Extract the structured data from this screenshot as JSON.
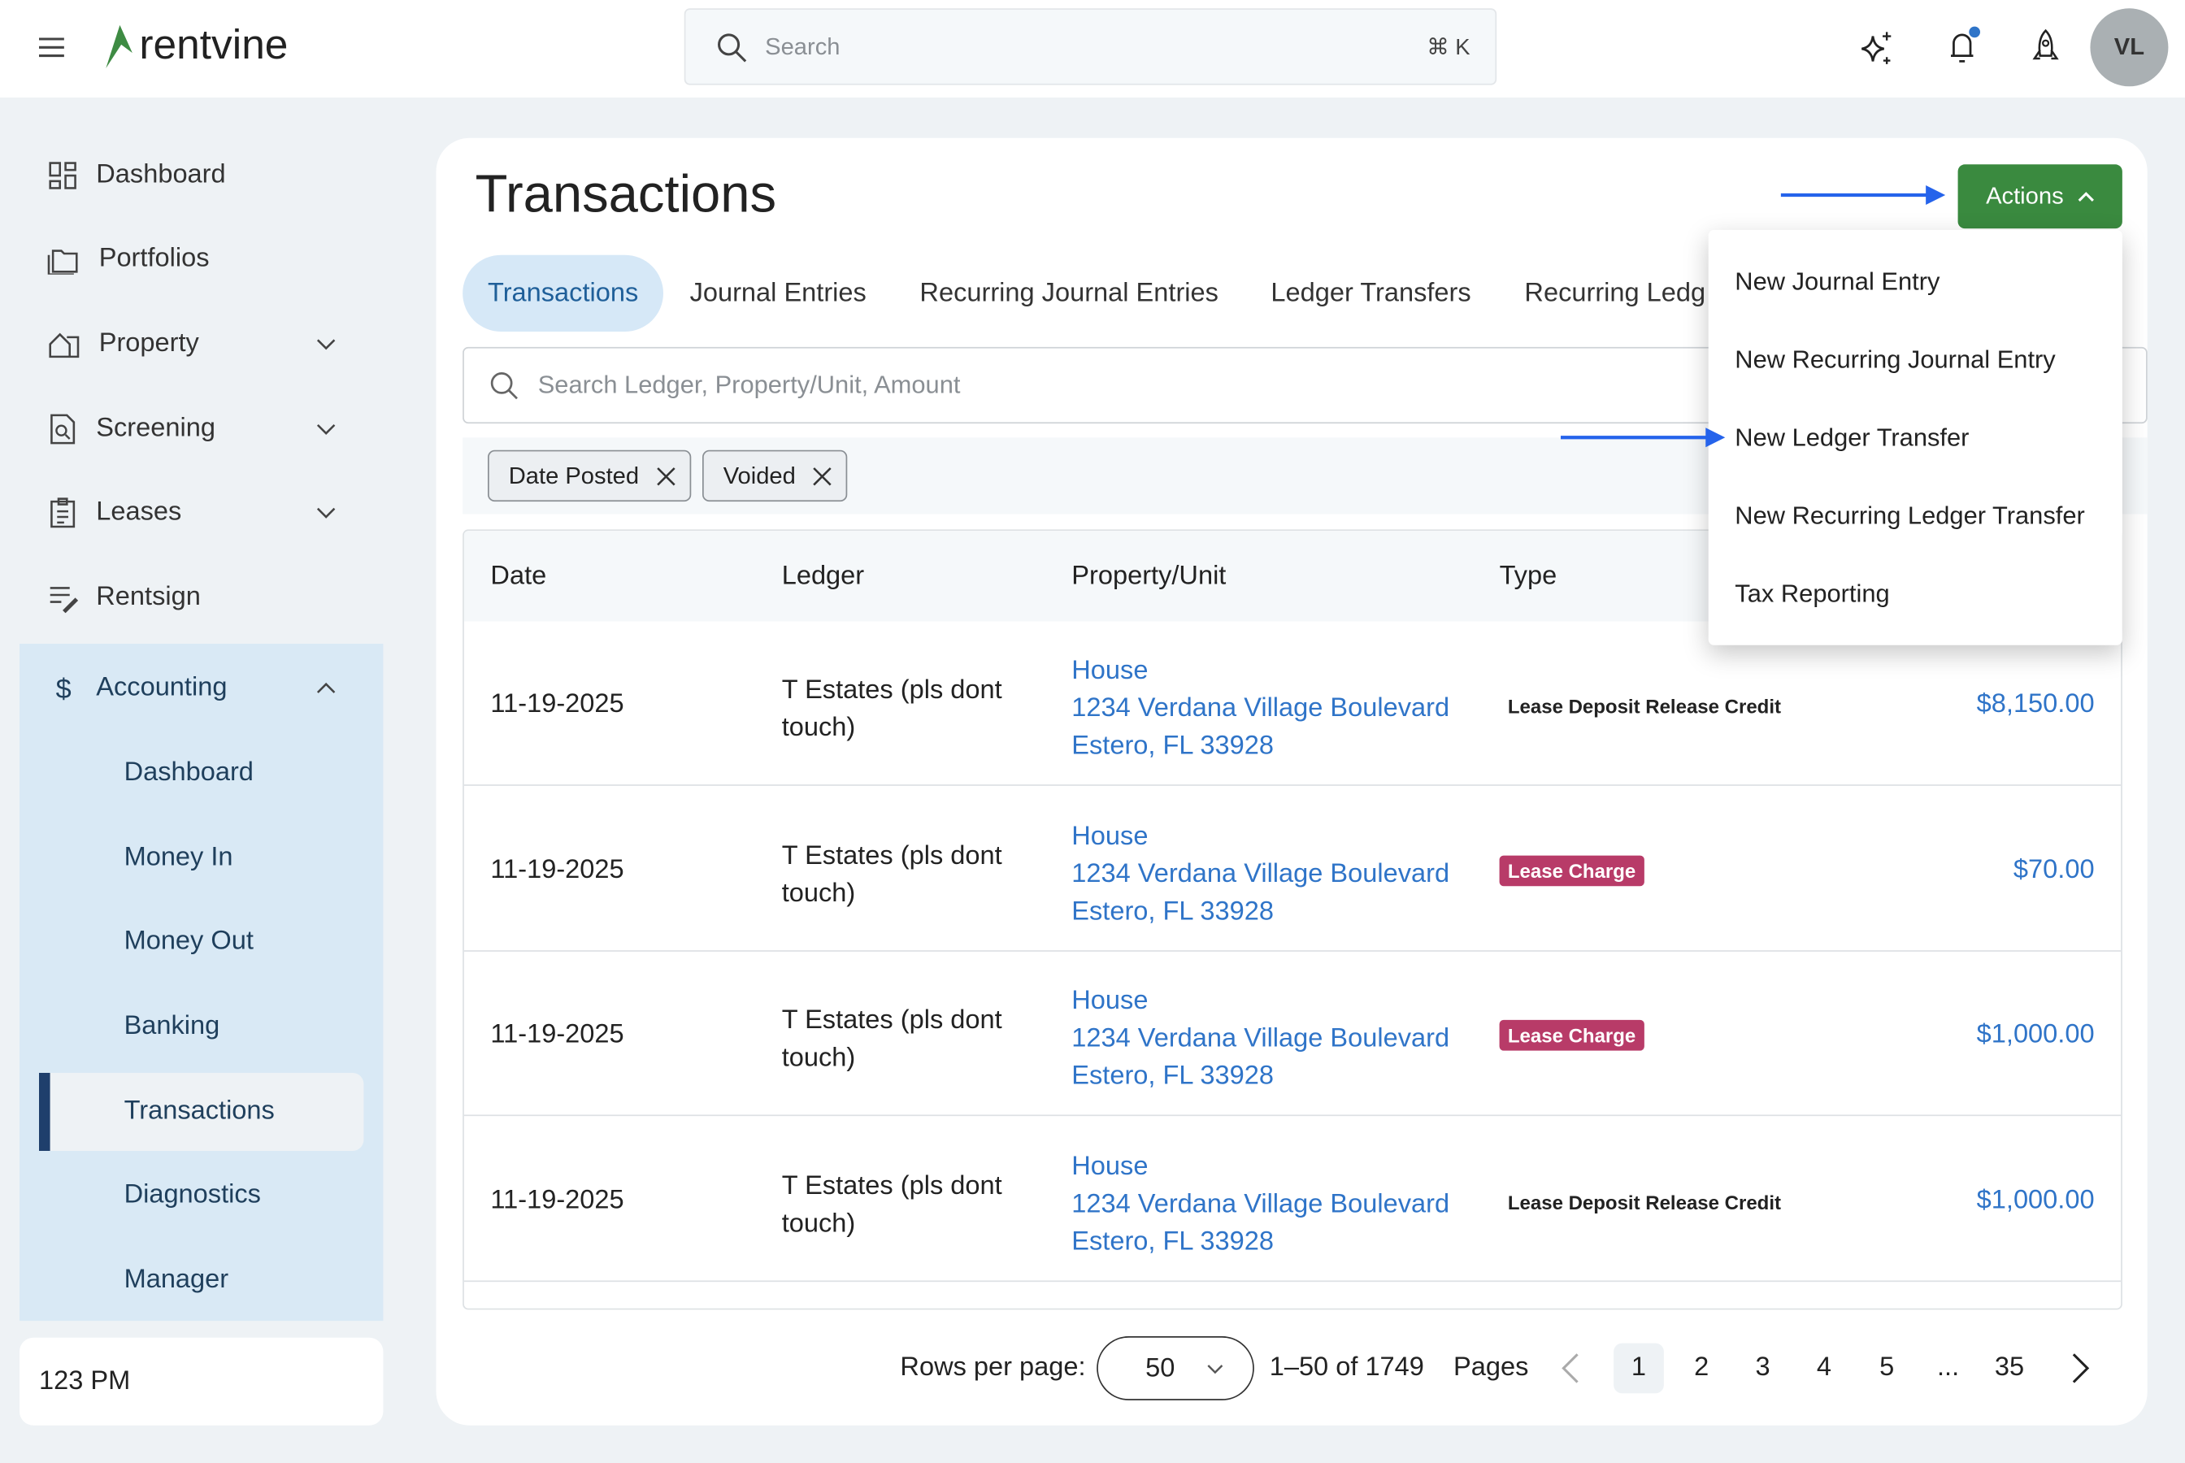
{
  "header": {
    "logo": "rentvine",
    "search_placeholder": "Search",
    "shortcut": "⌘ K",
    "avatar": "VL",
    "accent": "#3a8a3f",
    "notification_dot": "#2f74c8"
  },
  "sidebar": {
    "items": [
      {
        "label": "Dashboard",
        "icon": "grid-icon"
      },
      {
        "label": "Portfolios",
        "icon": "folder-icon"
      },
      {
        "label": "Property",
        "icon": "house-icon"
      },
      {
        "label": "Screening",
        "icon": "document-search-icon"
      },
      {
        "label": "Leases",
        "icon": "clipboard-icon"
      },
      {
        "label": "Rentsign",
        "icon": "sign-icon"
      }
    ],
    "accounting": {
      "label": "Accounting",
      "items": [
        "Dashboard",
        "Money In",
        "Money Out",
        "Banking",
        "Transactions",
        "Diagnostics",
        "Manager"
      ],
      "selected": "Transactions"
    },
    "footer": "123 PM"
  },
  "main": {
    "title": "Transactions",
    "actions_label": "Actions",
    "tabs": [
      "Transactions",
      "Journal Entries",
      "Recurring Journal Entries",
      "Ledger Transfers",
      "Recurring Ledger Transfers"
    ],
    "search_placeholder": "Search Ledger, Property/Unit, Amount",
    "filters": [
      "Date Posted",
      "Voided"
    ],
    "columns": [
      "Date",
      "Ledger",
      "Property/Unit",
      "Type"
    ],
    "rows": [
      {
        "date": "11-19-2025",
        "ledger": "T Estates (pls dont touch)",
        "unit": "House",
        "addr1": "1234 Verdana Village Boulevard",
        "addr2": "Estero, FL 33928",
        "type": "Lease Deposit Release Credit",
        "badge": false,
        "amount": "$8,150.00"
      },
      {
        "date": "11-19-2025",
        "ledger": "T Estates (pls dont touch)",
        "unit": "House",
        "addr1": "1234 Verdana Village Boulevard",
        "addr2": "Estero, FL 33928",
        "type": "Lease Charge",
        "badge": true,
        "amount": "$70.00"
      },
      {
        "date": "11-19-2025",
        "ledger": "T Estates (pls dont touch)",
        "unit": "House",
        "addr1": "1234 Verdana Village Boulevard",
        "addr2": "Estero, FL 33928",
        "type": "Lease Charge",
        "badge": true,
        "amount": "$1,000.00"
      },
      {
        "date": "11-19-2025",
        "ledger": "T Estates (pls dont touch)",
        "unit": "House",
        "addr1": "1234 Verdana Village Boulevard",
        "addr2": "Estero, FL 33928",
        "type": "Lease Deposit Release Credit",
        "badge": false,
        "amount": "$1,000.00"
      }
    ],
    "pagination": {
      "rows_label": "Rows per page:",
      "rows_value": "50",
      "range": "1–50 of 1749",
      "pages_label": "Pages",
      "pages": [
        "1",
        "2",
        "3",
        "4",
        "5",
        "...",
        "35"
      ],
      "current": "1"
    },
    "menu": [
      "New Journal Entry",
      "New Recurring Journal Entry",
      "New Ledger Transfer",
      "New Recurring Ledger Transfer",
      "Tax Reporting"
    ]
  }
}
